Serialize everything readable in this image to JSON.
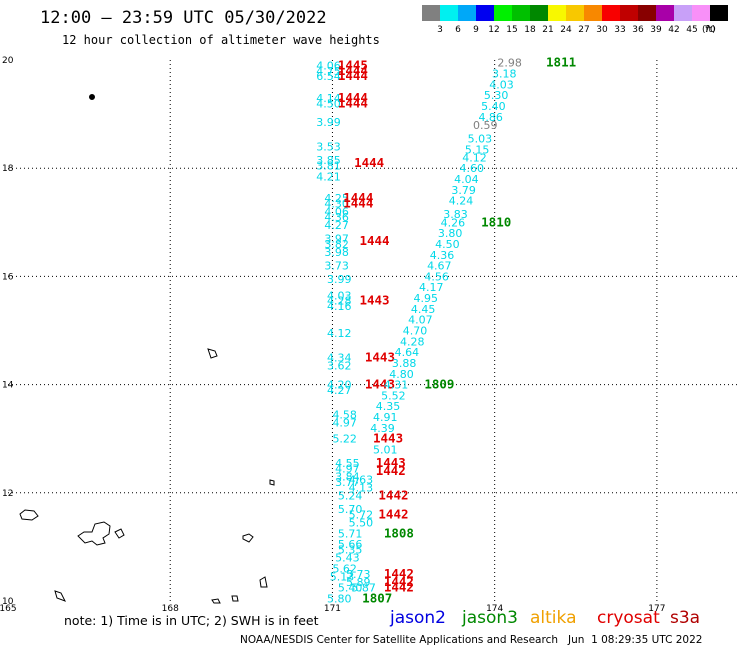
{
  "title": "12:00 – 23:59 UTC 05/30/2022",
  "subtitle": "12 hour collection of altimeter wave heights",
  "scale": {
    "unit": "(ft)",
    "colors": [
      "#808080",
      "#00f0f0",
      "#00a8f8",
      "#0000f0",
      "#00f000",
      "#00c000",
      "#008800",
      "#f8f800",
      "#f8c800",
      "#f88800",
      "#f80000",
      "#c00000",
      "#880000",
      "#a800a8",
      "#c8a0f8",
      "#f890f8",
      "#000000"
    ],
    "labels": [
      "3",
      "6",
      "9",
      "12",
      "15",
      "18",
      "21",
      "24",
      "27",
      "30",
      "33",
      "36",
      "39",
      "42",
      "45",
      "70"
    ]
  },
  "axes": {
    "lon_ticks": [
      "165",
      "168",
      "171",
      "174",
      "177"
    ],
    "lat_ticks": [
      "10",
      "12",
      "14",
      "16",
      "18",
      "20"
    ],
    "lon_range": [
      165,
      178.5
    ],
    "lat_range": [
      10,
      20
    ]
  },
  "colors": {
    "cyan": "#00d8e8",
    "red": "#e00000",
    "green": "#008800",
    "gray": "#808080"
  },
  "labels": [
    {
      "t": "4.06",
      "lon": 170.7,
      "lat": 19.9,
      "c": "cyan"
    },
    {
      "t": "1445",
      "lon": 171.1,
      "lat": 19.9,
      "c": "red"
    },
    {
      "t": "4.75",
      "lon": 170.7,
      "lat": 19.8,
      "c": "cyan"
    },
    {
      "t": "1444",
      "lon": 171.1,
      "lat": 19.8,
      "c": "red"
    },
    {
      "t": "6.54",
      "lon": 170.7,
      "lat": 19.7,
      "c": "cyan"
    },
    {
      "t": "1444",
      "lon": 171.1,
      "lat": 19.7,
      "c": "red"
    },
    {
      "t": "4.14",
      "lon": 170.7,
      "lat": 19.3,
      "c": "cyan"
    },
    {
      "t": "1444",
      "lon": 171.1,
      "lat": 19.3,
      "c": "red"
    },
    {
      "t": "4.50",
      "lon": 170.7,
      "lat": 19.2,
      "c": "cyan"
    },
    {
      "t": "1444",
      "lon": 171.1,
      "lat": 19.2,
      "c": "red"
    },
    {
      "t": "3.99",
      "lon": 170.7,
      "lat": 18.85,
      "c": "cyan"
    },
    {
      "t": "3.53",
      "lon": 170.7,
      "lat": 18.4,
      "c": "cyan"
    },
    {
      "t": "3.85",
      "lon": 170.7,
      "lat": 18.15,
      "c": "cyan"
    },
    {
      "t": "1444",
      "lon": 171.4,
      "lat": 18.1,
      "c": "red"
    },
    {
      "t": "3.81",
      "lon": 170.7,
      "lat": 18.05,
      "c": "cyan"
    },
    {
      "t": "4.21",
      "lon": 170.7,
      "lat": 17.85,
      "c": "cyan"
    },
    {
      "t": "4.25",
      "lon": 170.85,
      "lat": 17.45,
      "c": "cyan"
    },
    {
      "t": "1444",
      "lon": 171.2,
      "lat": 17.45,
      "c": "red"
    },
    {
      "t": "4.30",
      "lon": 170.85,
      "lat": 17.35,
      "c": "cyan"
    },
    {
      "t": "1444",
      "lon": 171.2,
      "lat": 17.35,
      "c": "red"
    },
    {
      "t": "4.06",
      "lon": 170.85,
      "lat": 17.2,
      "c": "cyan"
    },
    {
      "t": "4.36",
      "lon": 170.85,
      "lat": 17.1,
      "c": "cyan"
    },
    {
      "t": "4.27",
      "lon": 170.85,
      "lat": 16.95,
      "c": "cyan"
    },
    {
      "t": "3.97",
      "lon": 170.85,
      "lat": 16.7,
      "c": "cyan"
    },
    {
      "t": "1444",
      "lon": 171.5,
      "lat": 16.65,
      "c": "red"
    },
    {
      "t": "3.82",
      "lon": 170.85,
      "lat": 16.6,
      "c": "cyan"
    },
    {
      "t": "3.98",
      "lon": 170.85,
      "lat": 16.45,
      "c": "cyan"
    },
    {
      "t": "3.73",
      "lon": 170.85,
      "lat": 16.2,
      "c": "cyan"
    },
    {
      "t": "3.99",
      "lon": 170.9,
      "lat": 15.95,
      "c": "cyan"
    },
    {
      "t": "4.03",
      "lon": 170.9,
      "lat": 15.65,
      "c": "cyan"
    },
    {
      "t": "4.28",
      "lon": 170.9,
      "lat": 15.55,
      "c": "cyan"
    },
    {
      "t": "1443",
      "lon": 171.5,
      "lat": 15.55,
      "c": "red"
    },
    {
      "t": "4.16",
      "lon": 170.9,
      "lat": 15.45,
      "c": "cyan"
    },
    {
      "t": "4.12",
      "lon": 170.9,
      "lat": 14.95,
      "c": "cyan"
    },
    {
      "t": "4.34",
      "lon": 170.9,
      "lat": 14.5,
      "c": "cyan"
    },
    {
      "t": "1443",
      "lon": 171.6,
      "lat": 14.5,
      "c": "red"
    },
    {
      "t": "3.62",
      "lon": 170.9,
      "lat": 14.35,
      "c": "cyan"
    },
    {
      "t": "4.20",
      "lon": 170.9,
      "lat": 14.0,
      "c": "cyan"
    },
    {
      "t": "1443",
      "lon": 171.6,
      "lat": 14.0,
      "c": "red"
    },
    {
      "t": "4.27",
      "lon": 170.9,
      "lat": 13.9,
      "c": "cyan"
    },
    {
      "t": "4.58",
      "lon": 171.0,
      "lat": 13.45,
      "c": "cyan"
    },
    {
      "t": "4.97",
      "lon": 171.0,
      "lat": 13.3,
      "c": "cyan"
    },
    {
      "t": "5.22",
      "lon": 171.0,
      "lat": 13.0,
      "c": "cyan"
    },
    {
      "t": "1443",
      "lon": 171.75,
      "lat": 13.0,
      "c": "red"
    },
    {
      "t": "5.01",
      "lon": 171.75,
      "lat": 12.8,
      "c": "cyan"
    },
    {
      "t": "4.55",
      "lon": 171.05,
      "lat": 12.55,
      "c": "cyan"
    },
    {
      "t": "1443",
      "lon": 171.8,
      "lat": 12.55,
      "c": "red"
    },
    {
      "t": "4.97",
      "lon": 171.05,
      "lat": 12.45,
      "c": "cyan"
    },
    {
      "t": "1442",
      "lon": 171.8,
      "lat": 12.4,
      "c": "red"
    },
    {
      "t": "3.84",
      "lon": 171.05,
      "lat": 12.3,
      "c": "cyan"
    },
    {
      "t": "4.63",
      "lon": 171.3,
      "lat": 12.25,
      "c": "cyan"
    },
    {
      "t": "3.77",
      "lon": 171.05,
      "lat": 12.2,
      "c": "cyan"
    },
    {
      "t": "4.13",
      "lon": 171.3,
      "lat": 12.1,
      "c": "cyan"
    },
    {
      "t": "5.24",
      "lon": 171.1,
      "lat": 11.95,
      "c": "cyan"
    },
    {
      "t": "1442",
      "lon": 171.85,
      "lat": 11.95,
      "c": "red"
    },
    {
      "t": "5.70",
      "lon": 171.1,
      "lat": 11.7,
      "c": "cyan"
    },
    {
      "t": "1442",
      "lon": 171.85,
      "lat": 11.6,
      "c": "red"
    },
    {
      "t": "5.72",
      "lon": 171.3,
      "lat": 11.6,
      "c": "cyan"
    },
    {
      "t": "5.50",
      "lon": 171.3,
      "lat": 11.45,
      "c": "cyan"
    },
    {
      "t": "5.71",
      "lon": 171.1,
      "lat": 11.25,
      "c": "cyan"
    },
    {
      "t": "1808",
      "lon": 171.95,
      "lat": 11.25,
      "c": "green"
    },
    {
      "t": "5.66",
      "lon": 171.1,
      "lat": 11.05,
      "c": "cyan"
    },
    {
      "t": "5.35",
      "lon": 171.1,
      "lat": 10.95,
      "c": "cyan"
    },
    {
      "t": "5.43",
      "lon": 171.05,
      "lat": 10.8,
      "c": "cyan"
    },
    {
      "t": "5.62",
      "lon": 171.0,
      "lat": 10.6,
      "c": "cyan"
    },
    {
      "t": "5.13",
      "lon": 170.95,
      "lat": 10.45,
      "c": "cyan"
    },
    {
      "t": "5.73",
      "lon": 171.25,
      "lat": 10.5,
      "c": "cyan"
    },
    {
      "t": "1442",
      "lon": 171.95,
      "lat": 10.5,
      "c": "red"
    },
    {
      "t": "5.89",
      "lon": 171.25,
      "lat": 10.35,
      "c": "cyan"
    },
    {
      "t": "1442",
      "lon": 171.95,
      "lat": 10.35,
      "c": "red"
    },
    {
      "t": "5.40",
      "lon": 171.1,
      "lat": 10.25,
      "c": "cyan"
    },
    {
      "t": "5.87",
      "lon": 171.35,
      "lat": 10.25,
      "c": "cyan"
    },
    {
      "t": "1442",
      "lon": 171.95,
      "lat": 10.25,
      "c": "red"
    },
    {
      "t": "5.80",
      "lon": 170.9,
      "lat": 10.05,
      "c": "cyan"
    },
    {
      "t": "1807",
      "lon": 171.55,
      "lat": 10.05,
      "c": "green"
    },
    {
      "t": "2.98",
      "lon": 174.05,
      "lat": 19.95,
      "c": "gray"
    },
    {
      "t": "1811",
      "lon": 174.95,
      "lat": 19.95,
      "c": "green"
    },
    {
      "t": "3.18",
      "lon": 173.95,
      "lat": 19.75,
      "c": "cyan"
    },
    {
      "t": "4.03",
      "lon": 173.9,
      "lat": 19.55,
      "c": "cyan"
    },
    {
      "t": "5.30",
      "lon": 173.8,
      "lat": 19.35,
      "c": "cyan"
    },
    {
      "t": "5.40",
      "lon": 173.75,
      "lat": 19.15,
      "c": "cyan"
    },
    {
      "t": "4.86",
      "lon": 173.7,
      "lat": 18.95,
      "c": "cyan"
    },
    {
      "t": "0.59",
      "lon": 173.6,
      "lat": 18.8,
      "c": "gray"
    },
    {
      "t": "5.03",
      "lon": 173.5,
      "lat": 18.55,
      "c": "cyan"
    },
    {
      "t": "5.15",
      "lon": 173.45,
      "lat": 18.35,
      "c": "cyan"
    },
    {
      "t": "4.12",
      "lon": 173.4,
      "lat": 18.2,
      "c": "cyan"
    },
    {
      "t": "4.60",
      "lon": 173.35,
      "lat": 18.0,
      "c": "cyan"
    },
    {
      "t": "4.04",
      "lon": 173.25,
      "lat": 17.8,
      "c": "cyan"
    },
    {
      "t": "3.79",
      "lon": 173.2,
      "lat": 17.6,
      "c": "cyan"
    },
    {
      "t": "4.24",
      "lon": 173.15,
      "lat": 17.4,
      "c": "cyan"
    },
    {
      "t": "3.83",
      "lon": 173.05,
      "lat": 17.15,
      "c": "cyan"
    },
    {
      "t": "4.26",
      "lon": 173.0,
      "lat": 17.0,
      "c": "cyan"
    },
    {
      "t": "1810",
      "lon": 173.75,
      "lat": 17.0,
      "c": "green"
    },
    {
      "t": "3.80",
      "lon": 172.95,
      "lat": 16.8,
      "c": "cyan"
    },
    {
      "t": "4.50",
      "lon": 172.9,
      "lat": 16.6,
      "c": "cyan"
    },
    {
      "t": "4.36",
      "lon": 172.8,
      "lat": 16.4,
      "c": "cyan"
    },
    {
      "t": "4.67",
      "lon": 172.75,
      "lat": 16.2,
      "c": "cyan"
    },
    {
      "t": "4.56",
      "lon": 172.7,
      "lat": 16.0,
      "c": "cyan"
    },
    {
      "t": "4.17",
      "lon": 172.6,
      "lat": 15.8,
      "c": "cyan"
    },
    {
      "t": "4.95",
      "lon": 172.5,
      "lat": 15.6,
      "c": "cyan"
    },
    {
      "t": "4.45",
      "lon": 172.45,
      "lat": 15.4,
      "c": "cyan"
    },
    {
      "t": "4.07",
      "lon": 172.4,
      "lat": 15.2,
      "c": "cyan"
    },
    {
      "t": "4.70",
      "lon": 172.3,
      "lat": 15.0,
      "c": "cyan"
    },
    {
      "t": "4.28",
      "lon": 172.25,
      "lat": 14.8,
      "c": "cyan"
    },
    {
      "t": "4.64",
      "lon": 172.15,
      "lat": 14.6,
      "c": "cyan"
    },
    {
      "t": "3.88",
      "lon": 172.1,
      "lat": 14.4,
      "c": "cyan"
    },
    {
      "t": "4.80",
      "lon": 172.05,
      "lat": 14.2,
      "c": "cyan"
    },
    {
      "t": "4.31",
      "lon": 171.95,
      "lat": 14.0,
      "c": "cyan"
    },
    {
      "t": "1809",
      "lon": 172.7,
      "lat": 14.0,
      "c": "green"
    },
    {
      "t": "5.52",
      "lon": 171.9,
      "lat": 13.8,
      "c": "cyan"
    },
    {
      "t": "4.35",
      "lon": 171.8,
      "lat": 13.6,
      "c": "cyan"
    },
    {
      "t": "4.91",
      "lon": 171.75,
      "lat": 13.4,
      "c": "cyan"
    },
    {
      "t": "4.39",
      "lon": 171.7,
      "lat": 13.2,
      "c": "cyan"
    }
  ],
  "note": "note: 1) Time is in UTC; 2) SWH is in feet",
  "legend": [
    {
      "name": "jason2",
      "color": "#0000e0"
    },
    {
      "name": "jason3",
      "color": "#008800"
    },
    {
      "name": "altika",
      "color": "#f0a000"
    },
    {
      "name": "cryosat",
      "color": "#e00000"
    },
    {
      "name": "s3a",
      "color": "#b00000"
    }
  ],
  "footer": "NOAA/NESDIS Center for Satellite Applications and Research   Jun  1 08:29:35 UTC 2022"
}
